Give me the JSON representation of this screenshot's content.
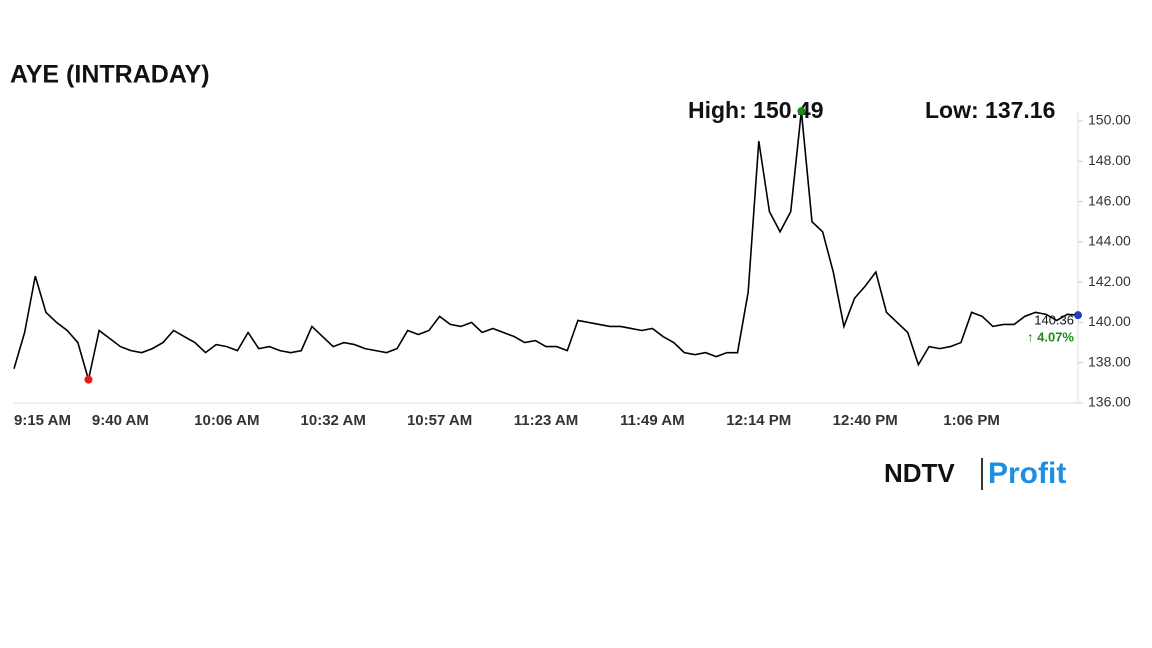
{
  "chart_data": {
    "type": "line",
    "title": "AYE (INTRADAY)",
    "categories": [
      "9:15 AM",
      null,
      null,
      null,
      null,
      null,
      null,
      null,
      null,
      null,
      "9:40 AM",
      null,
      null,
      null,
      null,
      null,
      null,
      null,
      null,
      null,
      "10:06 AM",
      null,
      null,
      null,
      null,
      null,
      null,
      null,
      null,
      null,
      "10:32 AM",
      null,
      null,
      null,
      null,
      null,
      null,
      null,
      null,
      null,
      "10:57 AM",
      null,
      null,
      null,
      null,
      null,
      null,
      null,
      null,
      null,
      "11:23 AM",
      null,
      null,
      null,
      null,
      null,
      null,
      null,
      null,
      null,
      "11:49 AM",
      null,
      null,
      null,
      null,
      null,
      null,
      null,
      null,
      null,
      "12:14 PM",
      null,
      null,
      null,
      null,
      null,
      null,
      null,
      null,
      null,
      "12:40 PM",
      null,
      null,
      null,
      null,
      null,
      null,
      null,
      null,
      null,
      "1:06 PM",
      null,
      null,
      null,
      null,
      null,
      null,
      null,
      null,
      null,
      null
    ],
    "values": [
      137.7,
      139.5,
      142.3,
      140.5,
      140.0,
      139.6,
      139.0,
      137.16,
      139.6,
      139.2,
      138.8,
      138.6,
      138.5,
      138.7,
      139.0,
      139.6,
      139.3,
      139.0,
      138.5,
      138.9,
      138.8,
      138.6,
      139.5,
      138.7,
      138.8,
      138.6,
      138.5,
      138.6,
      139.8,
      139.3,
      138.8,
      139.0,
      138.9,
      138.7,
      138.6,
      138.5,
      138.7,
      139.6,
      139.4,
      139.6,
      140.3,
      139.9,
      139.8,
      140.0,
      139.5,
      139.7,
      139.5,
      139.3,
      139.0,
      139.1,
      138.8,
      138.8,
      138.6,
      140.1,
      140.0,
      139.9,
      139.8,
      139.8,
      139.7,
      139.6,
      139.7,
      139.3,
      139.0,
      138.5,
      138.4,
      138.5,
      138.3,
      138.5,
      138.5,
      141.5,
      149.0,
      145.5,
      144.5,
      145.5,
      150.49,
      145.0,
      144.5,
      142.5,
      139.8,
      141.2,
      141.8,
      142.5,
      140.5,
      140.0,
      139.5,
      137.9,
      138.8,
      138.7,
      138.8,
      139.0,
      140.5,
      140.3,
      139.8,
      139.9,
      139.9,
      140.3,
      140.5,
      140.4,
      140.1,
      140.4,
      140.36
    ],
    "color": "#000000",
    "high_color": "#1a8a1a",
    "low_color": "#e02020",
    "last_color": "#1f3fbf",
    "change_color": "#1a8a1a",
    "ylim": [
      136,
      150.49
    ],
    "yticks": [
      {
        "value": 136,
        "label": "136.00"
      },
      {
        "value": 138,
        "label": "138.00"
      },
      {
        "value": 140,
        "label": "140.00"
      },
      {
        "value": 142,
        "label": "142.00"
      },
      {
        "value": 144,
        "label": "144.00"
      },
      {
        "value": 146,
        "label": "146.00"
      },
      {
        "value": 148,
        "label": "148.00"
      },
      {
        "value": 150,
        "label": "150.00"
      }
    ],
    "grid": false,
    "high_label": "High: 150.49",
    "low_label": "Low: 137.16",
    "change_label": "↑ 4.07%"
  },
  "logo": {
    "left": "NDTV",
    "right": "Profit"
  }
}
